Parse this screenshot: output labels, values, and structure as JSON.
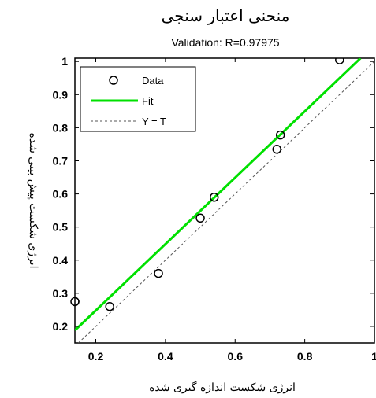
{
  "chart_data": {
    "type": "scatter",
    "title": "منحنی اعتبار سنجی",
    "subtitle": "Validation: R=0.97975",
    "xlabel": "انرژی شکست اندازه گیری شده",
    "ylabel": "انرژی شکست پیش بینی شده",
    "xlim": [
      0.14,
      1.0
    ],
    "ylim": [
      0.15,
      1.01
    ],
    "xticks": [
      0.2,
      0.4,
      0.6,
      0.8,
      1
    ],
    "yticks": [
      0.2,
      0.3,
      0.4,
      0.5,
      0.6,
      0.7,
      0.8,
      0.9,
      1
    ],
    "xtick_labels": [
      "0.2",
      "0.4",
      "0.6",
      "0.8",
      "1"
    ],
    "ytick_labels": [
      "0.2",
      "0.3",
      "0.4",
      "0.5",
      "0.6",
      "0.7",
      "0.8",
      "0.9",
      "1"
    ],
    "grid": false,
    "legend_position": "top-left",
    "series": [
      {
        "name": "Data",
        "kind": "markers",
        "marker": "circle-open",
        "color": "#000000",
        "points": [
          {
            "x": 0.14,
            "y": 0.275
          },
          {
            "x": 0.24,
            "y": 0.26
          },
          {
            "x": 0.38,
            "y": 0.36
          },
          {
            "x": 0.5,
            "y": 0.527
          },
          {
            "x": 0.54,
            "y": 0.59
          },
          {
            "x": 0.72,
            "y": 0.735
          },
          {
            "x": 0.73,
            "y": 0.778
          },
          {
            "x": 0.9,
            "y": 1.005
          }
        ]
      },
      {
        "name": "Fit",
        "kind": "line",
        "color": "#00e000",
        "points": [
          {
            "x": 0.14,
            "y": 0.188
          },
          {
            "x": 0.96,
            "y": 1.01
          }
        ]
      },
      {
        "name": "Y = T",
        "kind": "dashed-line",
        "color": "#555555",
        "points": [
          {
            "x": 0.14,
            "y": 0.14
          },
          {
            "x": 1.0,
            "y": 1.0
          }
        ]
      }
    ]
  }
}
